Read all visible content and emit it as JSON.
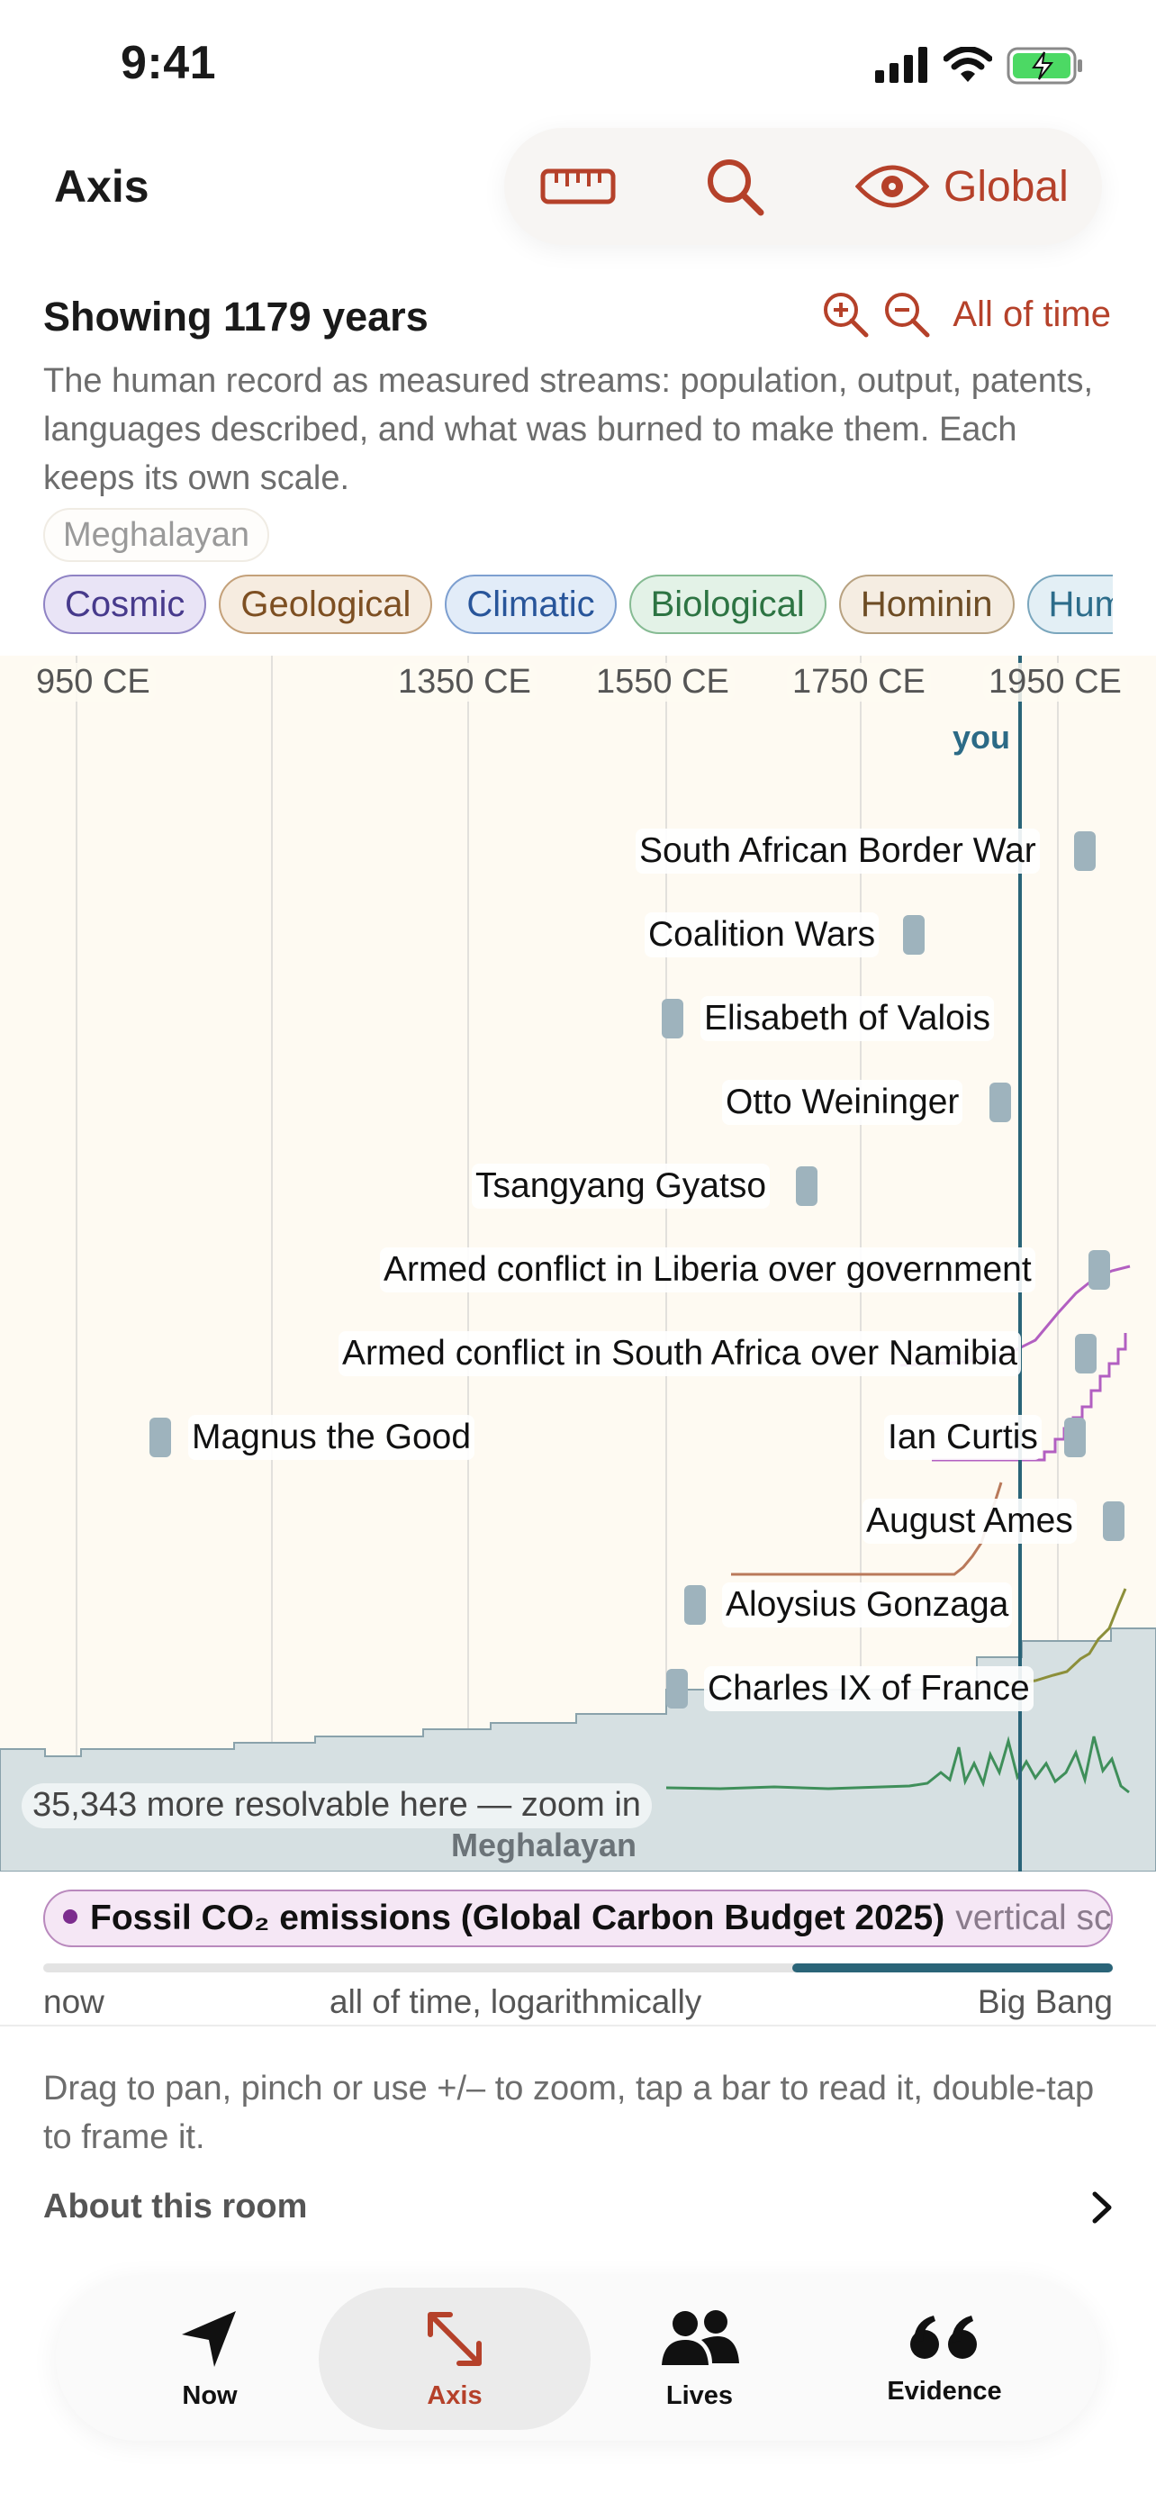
{
  "status_bar": {
    "time": "9:41"
  },
  "header": {
    "title": "Axis",
    "toolbar": {
      "scope_label": "Global"
    }
  },
  "overview": {
    "showing": "Showing 1179 years",
    "all_of_time": "All of time",
    "description": "The human record as measured streams: population, output, patents, languages described, and what was burned to make them. Each keeps its own scale.",
    "era_chip": "Meghalayan"
  },
  "categories": [
    {
      "label": "Cosmic",
      "cls": "cosmic"
    },
    {
      "label": "Geological",
      "cls": "geological"
    },
    {
      "label": "Climatic",
      "cls": "climatic"
    },
    {
      "label": "Biological",
      "cls": "biological"
    },
    {
      "label": "Hominin",
      "cls": "hominin"
    },
    {
      "label": "Human",
      "cls": "human"
    }
  ],
  "timeline": {
    "ticks": [
      "950 CE",
      "1350 CE",
      "1550 CE",
      "1750 CE",
      "1950 CE"
    ],
    "you_label": "you",
    "events": [
      {
        "label": "South African Border War"
      },
      {
        "label": "Coalition Wars"
      },
      {
        "label": "Elisabeth of Valois"
      },
      {
        "label": "Otto Weininger"
      },
      {
        "label": "Tsangyang Gyatso"
      },
      {
        "label": "Armed conflict in Liberia over government"
      },
      {
        "label": "Armed conflict in South Africa over Namibia"
      },
      {
        "label": "Magnus the Good"
      },
      {
        "label": "Ian Curtis"
      },
      {
        "label": "August Ames"
      },
      {
        "label": "Aloysius Gonzaga"
      },
      {
        "label": "Charles IX of France"
      }
    ],
    "resolvable": "35,343 more resolvable here — zoom in",
    "era_label": "Meghalayan"
  },
  "stream": {
    "name": "Fossil CO₂ emissions (Global Carbon Budget 2025)",
    "mode": "vertical scale"
  },
  "scale": {
    "left": "now",
    "middle": "all of time, logarithmically",
    "right": "Big Bang",
    "position_fraction": 0.7
  },
  "help": {
    "hint": "Drag to pan, pinch or use +/– to zoom, tap a bar to read it, double-tap to frame it.",
    "about": "About this room"
  },
  "tabs": [
    {
      "label": "Now",
      "icon": "navigation-arrow-icon"
    },
    {
      "label": "Axis",
      "icon": "expand-arrows-icon",
      "active": true
    },
    {
      "label": "Lives",
      "icon": "people-icon"
    },
    {
      "label": "Evidence",
      "icon": "quote-icon"
    }
  ],
  "colors": {
    "accent": "#b5412a",
    "now_line": "#2a6478",
    "timeline_bg": "#fefaf2",
    "event_marker": "#9eb3bd"
  }
}
